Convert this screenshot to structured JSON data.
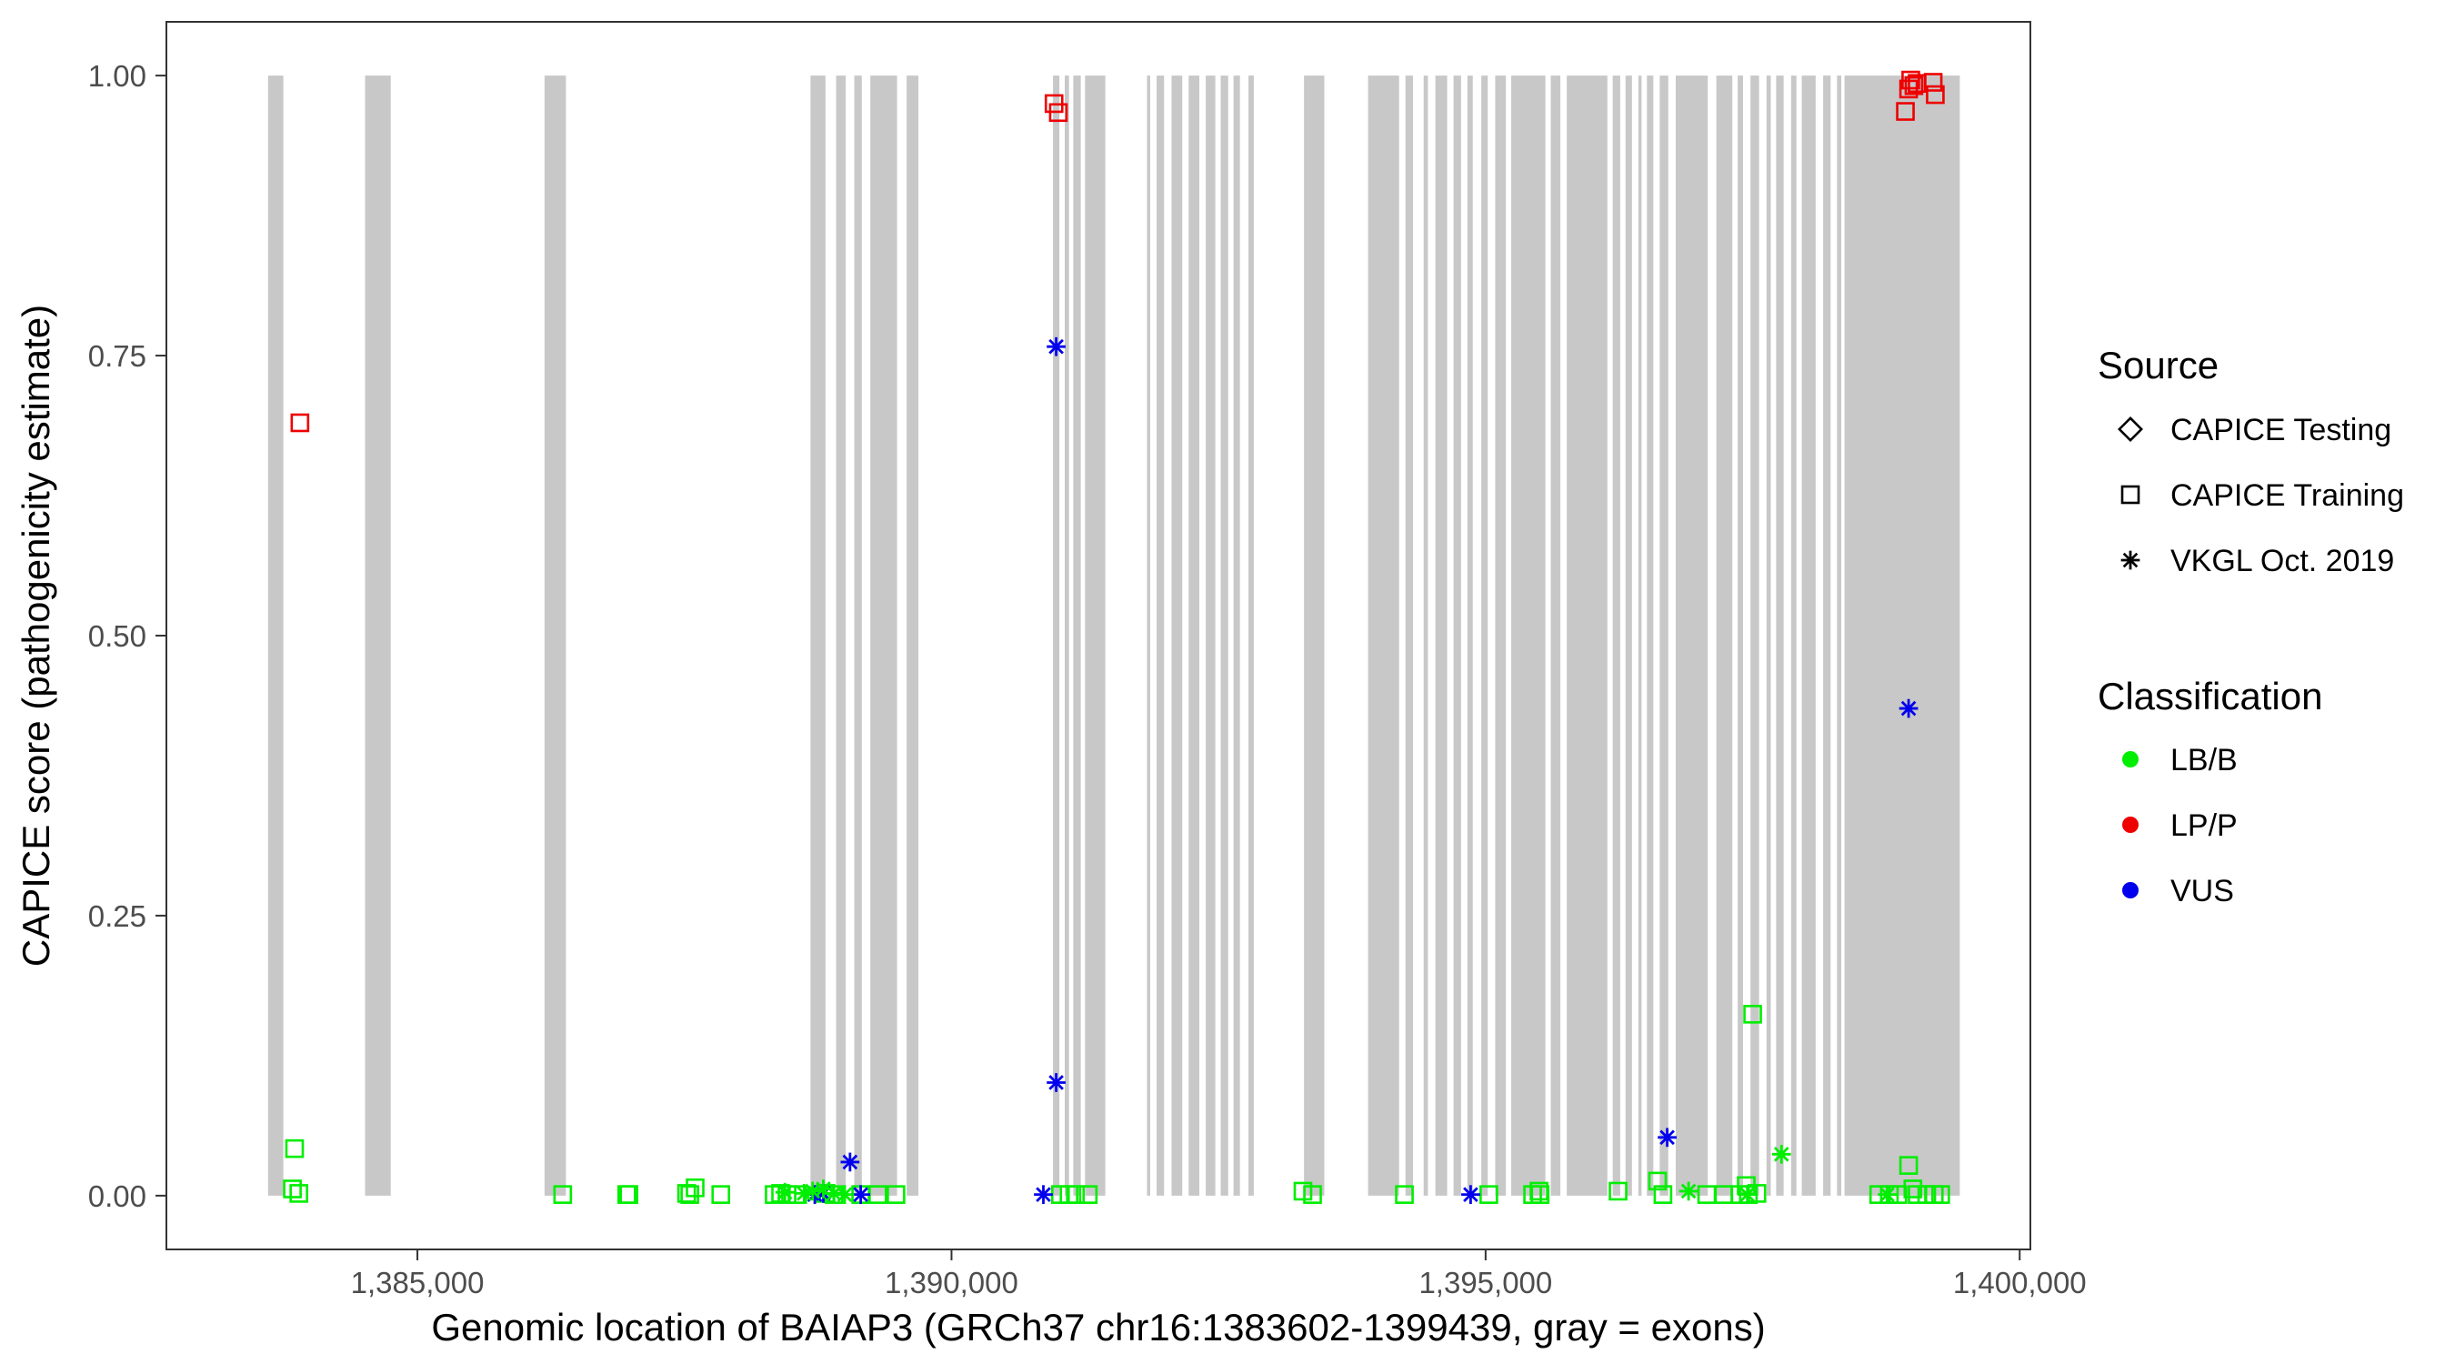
{
  "chart_data": {
    "type": "scatter",
    "title": "",
    "xlabel": "Genomic location of BAIAP3 (GRCh37 chr16:1383602-1399439, gray = exons)",
    "ylabel": "CAPICE score (pathogenicity estimate)",
    "xlim": [
      1382650,
      1400100
    ],
    "ylim": [
      -0.048,
      1.048
    ],
    "x_ticks": [
      1385000,
      1390000,
      1395000,
      1400000
    ],
    "x_tick_labels": [
      "1,385,000",
      "1,390,000",
      "1,395,000",
      "1,400,000"
    ],
    "y_ticks": [
      0,
      0.25,
      0.5,
      0.75,
      1.0
    ],
    "y_tick_labels": [
      "0.00",
      "0.25",
      "0.50",
      "0.75",
      "1.00"
    ],
    "grid": false,
    "exons": [
      [
        1383602,
        1383745
      ],
      [
        1384510,
        1384750
      ],
      [
        1386190,
        1386390
      ],
      [
        1388680,
        1388820
      ],
      [
        1388920,
        1389010
      ],
      [
        1389090,
        1389160
      ],
      [
        1389240,
        1389490
      ],
      [
        1389580,
        1389690
      ],
      [
        1390950,
        1391010
      ],
      [
        1391060,
        1391100
      ],
      [
        1391140,
        1391210
      ],
      [
        1391250,
        1391440
      ],
      [
        1391830,
        1391860
      ],
      [
        1391920,
        1391990
      ],
      [
        1392060,
        1392160
      ],
      [
        1392220,
        1392320
      ],
      [
        1392380,
        1392470
      ],
      [
        1392520,
        1392590
      ],
      [
        1392640,
        1392700
      ],
      [
        1392780,
        1392830
      ],
      [
        1393300,
        1393490
      ],
      [
        1393900,
        1394190
      ],
      [
        1394250,
        1394320
      ],
      [
        1394420,
        1394460
      ],
      [
        1394530,
        1394640
      ],
      [
        1394700,
        1394770
      ],
      [
        1394830,
        1394880
      ],
      [
        1394960,
        1395020
      ],
      [
        1395090,
        1395190
      ],
      [
        1395240,
        1395560
      ],
      [
        1395610,
        1395700
      ],
      [
        1395760,
        1396140
      ],
      [
        1396190,
        1396260
      ],
      [
        1396310,
        1396370
      ],
      [
        1396430,
        1396460
      ],
      [
        1396510,
        1396570
      ],
      [
        1396630,
        1396710
      ],
      [
        1396780,
        1397080
      ],
      [
        1397160,
        1397310
      ],
      [
        1397360,
        1397410
      ],
      [
        1397480,
        1397560
      ],
      [
        1397630,
        1397670
      ],
      [
        1397720,
        1397790
      ],
      [
        1397860,
        1397910
      ],
      [
        1397960,
        1398090
      ],
      [
        1398160,
        1398230
      ],
      [
        1398290,
        1398330
      ],
      [
        1398360,
        1399439
      ]
    ],
    "legend": {
      "position": "right",
      "source_title": "Source",
      "source_entries": [
        {
          "label": "CAPICE Testing",
          "shape": "diamond"
        },
        {
          "label": "CAPICE Training",
          "shape": "square"
        },
        {
          "label": "VKGL Oct. 2019",
          "shape": "asterisk"
        }
      ],
      "class_title": "Classification",
      "class_entries": [
        {
          "label": "LB/B",
          "color": "#00ee00"
        },
        {
          "label": "LP/P",
          "color": "#ee0000"
        },
        {
          "label": "VUS",
          "color": "#0000ee"
        }
      ]
    },
    "colors": {
      "LB/B": "#00ee00",
      "LP/P": "#ee0000",
      "VUS": "#0000ee",
      "exon": "#c8c8c8"
    },
    "series": [
      {
        "name": "CAPICE Training",
        "shape": "square",
        "points": [
          [
            1383900,
            0.69,
            "LP/P"
          ],
          [
            1383850,
            0.042,
            "LB/B"
          ],
          [
            1383830,
            0.006,
            "LB/B"
          ],
          [
            1383890,
            0.002,
            "LB/B"
          ],
          [
            1386360,
            0.001,
            "LB/B"
          ],
          [
            1386960,
            0.001,
            "LB/B"
          ],
          [
            1386980,
            0.001,
            "LB/B"
          ],
          [
            1387520,
            0.002,
            "LB/B"
          ],
          [
            1387550,
            0.001,
            "LB/B"
          ],
          [
            1387600,
            0.007,
            "LB/B"
          ],
          [
            1387840,
            0.001,
            "LB/B"
          ],
          [
            1388340,
            0.001,
            "LB/B"
          ],
          [
            1388400,
            0.002,
            "LB/B"
          ],
          [
            1388460,
            0.001,
            "LB/B"
          ],
          [
            1388560,
            0.001,
            "LB/B"
          ],
          [
            1388820,
            0.002,
            "LB/B"
          ],
          [
            1388900,
            0.001,
            "LB/B"
          ],
          [
            1389150,
            0.001,
            "LB/B"
          ],
          [
            1389310,
            0.001,
            "LB/B"
          ],
          [
            1389480,
            0.001,
            "LB/B"
          ],
          [
            1390960,
            0.975,
            "LP/P"
          ],
          [
            1391000,
            0.967,
            "LP/P"
          ],
          [
            1391020,
            0.001,
            "LB/B"
          ],
          [
            1391100,
            0.001,
            "LB/B"
          ],
          [
            1391160,
            0.001,
            "LB/B"
          ],
          [
            1391280,
            0.001,
            "LB/B"
          ],
          [
            1393290,
            0.004,
            "LB/B"
          ],
          [
            1393380,
            0.001,
            "LB/B"
          ],
          [
            1394240,
            0.001,
            "LB/B"
          ],
          [
            1395030,
            0.001,
            "LB/B"
          ],
          [
            1395440,
            0.001,
            "LB/B"
          ],
          [
            1395500,
            0.004,
            "LB/B"
          ],
          [
            1395510,
            0.001,
            "LB/B"
          ],
          [
            1396240,
            0.004,
            "LB/B"
          ],
          [
            1396610,
            0.013,
            "LB/B"
          ],
          [
            1396660,
            0.001,
            "LB/B"
          ],
          [
            1397070,
            0.001,
            "LB/B"
          ],
          [
            1397230,
            0.001,
            "LB/B"
          ],
          [
            1397380,
            0.001,
            "LB/B"
          ],
          [
            1397440,
            0.009,
            "LB/B"
          ],
          [
            1397460,
            0.001,
            "LB/B"
          ],
          [
            1397500,
            0.162,
            "LB/B"
          ],
          [
            1397540,
            0.002,
            "LB/B"
          ],
          [
            1398680,
            0.001,
            "LB/B"
          ],
          [
            1398780,
            0.001,
            "LB/B"
          ],
          [
            1398860,
            0.001,
            "LB/B"
          ],
          [
            1398960,
            0.027,
            "LB/B"
          ],
          [
            1399000,
            0.006,
            "LB/B"
          ],
          [
            1399040,
            0.001,
            "LB/B"
          ],
          [
            1399130,
            0.001,
            "LB/B"
          ],
          [
            1399200,
            0.001,
            "LB/B"
          ],
          [
            1399260,
            0.001,
            "LB/B"
          ],
          [
            1398930,
            0.968,
            "LP/P"
          ],
          [
            1398960,
            0.988,
            "LP/P"
          ],
          [
            1398980,
            0.996,
            "LP/P"
          ],
          [
            1399010,
            0.991,
            "LP/P"
          ],
          [
            1399040,
            0.993,
            "LP/P"
          ],
          [
            1399190,
            0.994,
            "LP/P"
          ],
          [
            1399210,
            0.983,
            "LP/P"
          ]
        ]
      },
      {
        "name": "VKGL Oct. 2019",
        "shape": "asterisk",
        "points": [
          [
            1390980,
            0.758,
            "VUS"
          ],
          [
            1390980,
            0.101,
            "VUS"
          ],
          [
            1390860,
            0.001,
            "VUS"
          ],
          [
            1389050,
            0.03,
            "VUS"
          ],
          [
            1389150,
            0.001,
            "VUS"
          ],
          [
            1388720,
            0.001,
            "VUS"
          ],
          [
            1388800,
            0.002,
            "VUS"
          ],
          [
            1394860,
            0.001,
            "VUS"
          ],
          [
            1396700,
            0.052,
            "VUS"
          ],
          [
            1398960,
            0.435,
            "VUS"
          ],
          [
            1388440,
            0.003,
            "LB/B"
          ],
          [
            1388620,
            0.002,
            "LB/B"
          ],
          [
            1388700,
            0.004,
            "LB/B"
          ],
          [
            1388800,
            0.006,
            "LB/B"
          ],
          [
            1388900,
            0.002,
            "LB/B"
          ],
          [
            1389000,
            0.001,
            "LB/B"
          ],
          [
            1396900,
            0.004,
            "LB/B"
          ],
          [
            1397770,
            0.037,
            "LB/B"
          ],
          [
            1397450,
            0.001,
            "LB/B"
          ],
          [
            1398760,
            0.001,
            "LB/B"
          ]
        ]
      }
    ]
  }
}
